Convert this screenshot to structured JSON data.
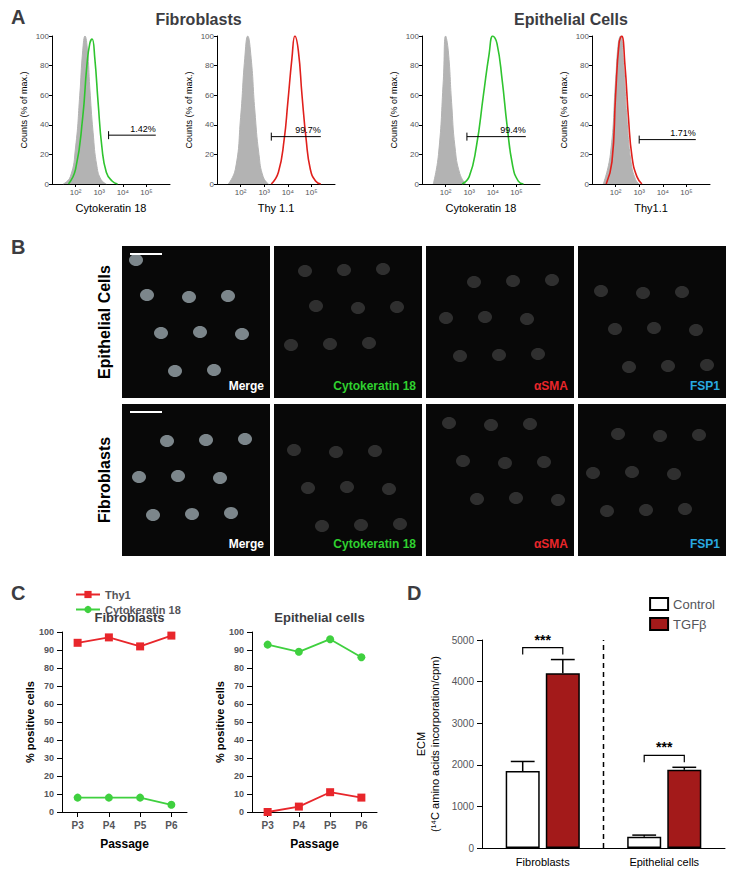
{
  "panel_labels": [
    "A",
    "B",
    "C",
    "D"
  ],
  "chart_data": [
    {
      "type": "histogram_overlay",
      "group": "Fibroblasts",
      "xlabel": "Cytokeratin 18",
      "ylabel": "Counts (% of max.)",
      "log": "x",
      "xlim": [
        10,
        1000000
      ],
      "xticks": [
        {
          "value": 100,
          "label": "10²"
        },
        {
          "value": 1000,
          "label": "10³"
        },
        {
          "value": 10000,
          "label": "10⁴"
        },
        {
          "value": 100000,
          "label": "10⁵"
        }
      ],
      "ylim": [
        0,
        100
      ],
      "yticks": [
        0,
        20,
        40,
        60,
        80,
        100
      ],
      "grid": false,
      "series": [
        {
          "type": "area",
          "color": "#b3b3b3",
          "x": [
            30,
            60,
            100,
            150,
            200,
            250,
            320,
            400,
            550,
            800,
            1200,
            2000
          ],
          "values": [
            0,
            5,
            25,
            60,
            90,
            100,
            90,
            65,
            35,
            12,
            3,
            0
          ]
        },
        {
          "type": "line",
          "color": "#2fc42f",
          "x": [
            50,
            100,
            200,
            300,
            400,
            500,
            650,
            900,
            1300,
            2000,
            3500,
            6000
          ],
          "values": [
            0,
            10,
            45,
            80,
            95,
            98,
            85,
            55,
            25,
            8,
            2,
            0
          ]
        }
      ],
      "gate": {
        "x": [
          2500,
          250000
        ],
        "y": 33,
        "label": "1.42%"
      }
    },
    {
      "type": "histogram_overlay",
      "group": "Fibroblasts",
      "xlabel": "Thy 1.1",
      "ylabel": "Counts (% of max.)",
      "log": "x",
      "xlim": [
        10,
        1000000
      ],
      "xticks": [
        {
          "value": 100,
          "label": "10²"
        },
        {
          "value": 1000,
          "label": "10³"
        },
        {
          "value": 10000,
          "label": "10⁴"
        },
        {
          "value": 100000,
          "label": "10⁵"
        }
      ],
      "ylim": [
        0,
        100
      ],
      "yticks": [
        0,
        20,
        40,
        60,
        80,
        100
      ],
      "grid": false,
      "series": [
        {
          "type": "area",
          "color": "#b3b3b3",
          "x": [
            30,
            60,
            100,
            150,
            200,
            280,
            400,
            600,
            900,
            1500
          ],
          "values": [
            0,
            10,
            45,
            85,
            100,
            85,
            50,
            20,
            5,
            0
          ]
        },
        {
          "type": "line",
          "color": "#e0201c",
          "x": [
            2000,
            4000,
            7000,
            10000,
            15000,
            20000,
            28000,
            40000,
            60000,
            90000,
            150000,
            250000
          ],
          "values": [
            0,
            8,
            30,
            55,
            85,
            100,
            90,
            60,
            30,
            10,
            2,
            0
          ]
        }
      ],
      "gate": {
        "x": [
          2000,
          250000
        ],
        "y": 32,
        "label": "99.7%"
      }
    },
    {
      "type": "histogram_overlay",
      "group": "Epithelial Cells",
      "xlabel": "Cytokeratin 18",
      "ylabel": "Counts (% of max.)",
      "log": "x",
      "xlim": [
        10,
        1000000
      ],
      "xticks": [
        {
          "value": 100,
          "label": "10²"
        },
        {
          "value": 1000,
          "label": "10³"
        },
        {
          "value": 10000,
          "label": "10⁴"
        },
        {
          "value": 100000,
          "label": "10⁵"
        }
      ],
      "ylim": [
        0,
        100
      ],
      "yticks": [
        0,
        20,
        40,
        60,
        80,
        100
      ],
      "grid": false,
      "series": [
        {
          "type": "area",
          "color": "#b3b3b3",
          "x": [
            30,
            50,
            80,
            100,
            130,
            180,
            250,
            400,
            700
          ],
          "values": [
            0,
            20,
            70,
            100,
            90,
            55,
            25,
            7,
            0
          ]
        },
        {
          "type": "line",
          "color": "#2fc42f",
          "x": [
            500,
            1000,
            2000,
            4000,
            7000,
            10000,
            15000,
            25000,
            40000,
            70000,
            120000,
            200000
          ],
          "values": [
            0,
            5,
            25,
            60,
            88,
            100,
            95,
            70,
            40,
            12,
            2,
            0
          ]
        }
      ],
      "gate": {
        "x": [
          800,
          250000
        ],
        "y": 32,
        "label": "99.4%"
      }
    },
    {
      "type": "histogram_overlay",
      "group": "Epithelial Cells",
      "xlabel": "Thy1.1",
      "ylabel": "Counts (% of max.)",
      "log": "x",
      "xlim": [
        10,
        1000000
      ],
      "xticks": [
        {
          "value": 100,
          "label": "10²"
        },
        {
          "value": 1000,
          "label": "10³"
        },
        {
          "value": 10000,
          "label": "10⁴"
        },
        {
          "value": 100000,
          "label": "10⁵"
        }
      ],
      "ylim": [
        0,
        100
      ],
      "yticks": [
        0,
        20,
        40,
        60,
        80,
        100
      ],
      "grid": false,
      "series": [
        {
          "type": "area",
          "color": "#b3b3b3",
          "x": [
            30,
            60,
            100,
            130,
            160,
            220,
            300,
            450,
            700,
            1000
          ],
          "values": [
            0,
            20,
            70,
            95,
            100,
            80,
            45,
            15,
            3,
            0
          ]
        },
        {
          "type": "line",
          "color": "#e0201c",
          "x": [
            40,
            70,
            100,
            140,
            180,
            250,
            350,
            500,
            800,
            1300
          ],
          "values": [
            0,
            15,
            60,
            95,
            100,
            80,
            45,
            18,
            5,
            0
          ]
        }
      ],
      "gate": {
        "x": [
          1000,
          250000
        ],
        "y": 30,
        "label": "1.71%"
      }
    },
    {
      "type": "line",
      "title": "Fibroblasts",
      "xlabel": "Passage",
      "ylabel": "% positive cells",
      "categories": [
        "P3",
        "P4",
        "P5",
        "P6"
      ],
      "ylim": [
        0,
        100
      ],
      "yticks": [
        0,
        10,
        20,
        30,
        40,
        50,
        60,
        70,
        80,
        90,
        100
      ],
      "grid": false,
      "legend": "top-left",
      "series": [
        {
          "name": "Thy1",
          "color": "#e8262b",
          "marker": "square",
          "values": [
            94,
            97,
            92,
            98
          ]
        },
        {
          "name": "Cytokeratin 18",
          "color": "#3fd03f",
          "marker": "circle",
          "values": [
            8,
            8,
            8,
            4
          ]
        }
      ]
    },
    {
      "type": "line",
      "title": "Epithelial cells",
      "xlabel": "Passage",
      "ylabel": "% positive cells",
      "categories": [
        "P3",
        "P4",
        "P5",
        "P6"
      ],
      "ylim": [
        0,
        100
      ],
      "yticks": [
        0,
        10,
        20,
        30,
        40,
        50,
        60,
        70,
        80,
        90,
        100
      ],
      "grid": false,
      "series": [
        {
          "name": "Thy1",
          "color": "#e8262b",
          "marker": "square",
          "values": [
            0,
            3,
            11,
            8
          ]
        },
        {
          "name": "Cytokeratin 18",
          "color": "#3fd03f",
          "marker": "circle",
          "values": [
            93,
            89,
            96,
            86
          ]
        }
      ]
    },
    {
      "type": "bar",
      "ylabel": "ECM\n(¹⁴C amino acids incorporation/cpm)",
      "categories": [
        "Fibroblasts",
        "Epithelial cells"
      ],
      "ylim": [
        0,
        5000
      ],
      "yticks": [
        0,
        1000,
        2000,
        3000,
        4000,
        5000
      ],
      "grid": false,
      "legend": "top-right",
      "series": [
        {
          "name": "Control",
          "color": "#ffffff",
          "values": [
            1850,
            270
          ],
          "errors": [
            230,
            40
          ]
        },
        {
          "name": "TGFβ",
          "color": "#a31a1a",
          "values": [
            4200,
            1880
          ],
          "errors": [
            330,
            60
          ]
        }
      ],
      "significance": [
        {
          "category": "Fibroblasts",
          "label": "***"
        },
        {
          "category": "Epithelial cells",
          "label": "***"
        }
      ]
    }
  ],
  "micrographs": {
    "rows": [
      "Epithelial Cells",
      "Fibroblasts"
    ],
    "columns": [
      {
        "label": "Merge",
        "color": "#ffffff"
      },
      {
        "label": "Cytokeratin 18",
        "color": "#2fd02f"
      },
      {
        "label": "αSMA",
        "color": "#e8262b"
      },
      {
        "label": "FSP1",
        "color": "#29a9e0"
      }
    ]
  }
}
